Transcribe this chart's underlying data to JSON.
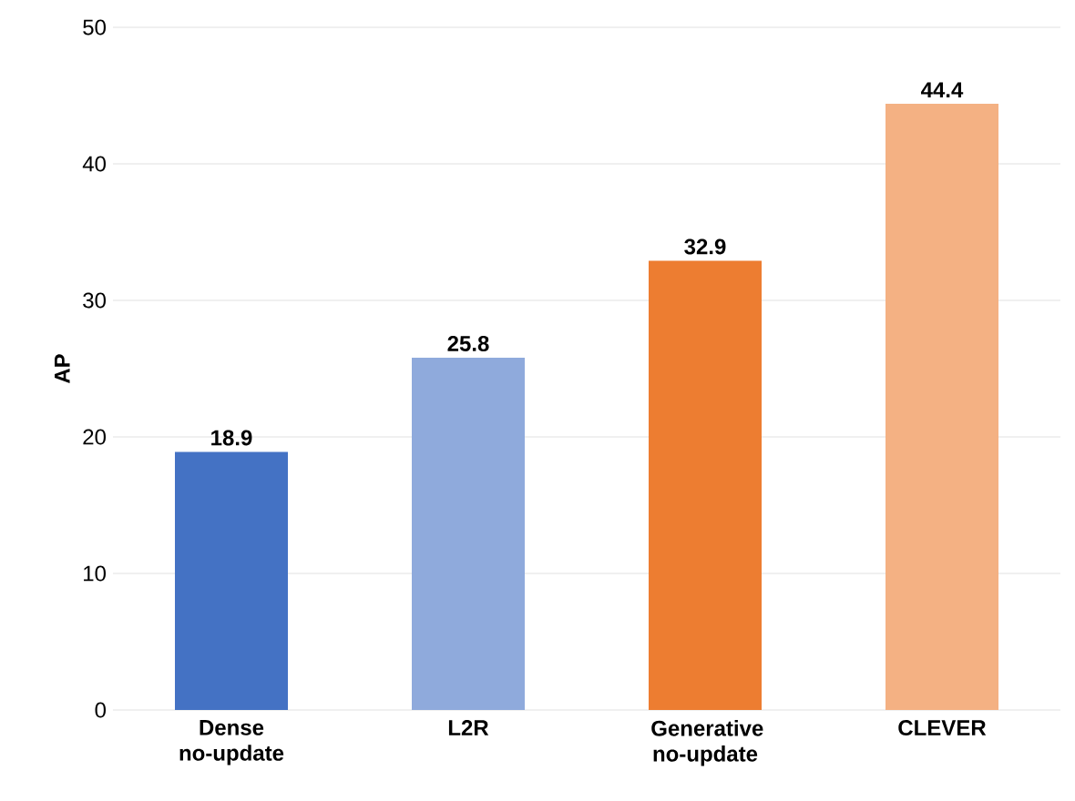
{
  "chart_data": {
    "type": "bar",
    "ylabel": "AP",
    "categories": [
      "Dense no-update",
      "L2R",
      "Generative no-update",
      "CLEVER"
    ],
    "values": [
      18.9,
      25.8,
      32.9,
      44.4
    ],
    "colors": [
      "#4472c4",
      "#8faadc",
      "#ed7d31",
      "#f4b183"
    ],
    "value_labels": [
      "18.9",
      "25.8",
      "32.9",
      "44.4"
    ],
    "ylim": [
      0,
      50
    ],
    "yticks": [
      0,
      10,
      20,
      30,
      40,
      50
    ],
    "grid": "y"
  }
}
